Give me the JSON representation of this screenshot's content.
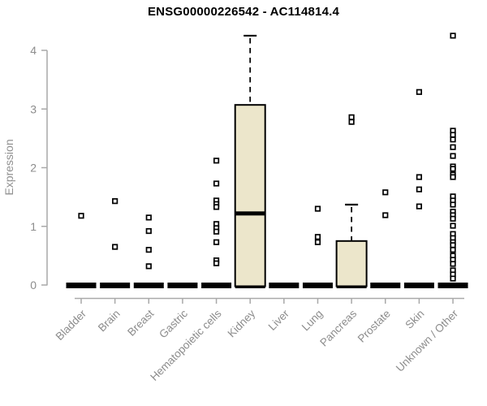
{
  "title": "ENSG00000226542 - AC114814.4",
  "colors": {
    "background": "#FFFFFF",
    "box_fill": "#ECE6CB",
    "box_stroke": "#000000",
    "marker_stroke": "#000000",
    "marker_fill": "#FFFFFF",
    "zero_bar": "#000000",
    "axis_line": "#A9A9A9",
    "axis_text": "#8C8C8C",
    "title_text": "#000000"
  },
  "chart_data": {
    "type": "boxplot",
    "title": "ENSG00000226542 - AC114814.4",
    "xlabel": "",
    "ylabel": "Expression",
    "ylim": [
      0,
      4.3
    ],
    "yticks": [
      0,
      1,
      2,
      3,
      4
    ],
    "grid": false,
    "legend": "none",
    "categories": [
      "Bladder",
      "Brain",
      "Breast",
      "Gastric",
      "Hematopoietic cells",
      "Kidney",
      "Liver",
      "Lung",
      "Pancreas",
      "Prostate",
      "Skin",
      "Unknown / Other"
    ],
    "series": [
      {
        "category": "Bladder",
        "box": {
          "q1": 0,
          "median": 0,
          "q3": 0
        },
        "points": [
          1.18
        ]
      },
      {
        "category": "Brain",
        "box": {
          "q1": 0,
          "median": 0,
          "q3": 0
        },
        "points": [
          1.43,
          0.65
        ]
      },
      {
        "category": "Breast",
        "box": {
          "q1": 0,
          "median": 0,
          "q3": 0
        },
        "points": [
          1.15,
          0.92,
          0.6,
          0.32
        ]
      },
      {
        "category": "Gastric",
        "box": {
          "q1": 0,
          "median": 0,
          "q3": 0
        },
        "points": []
      },
      {
        "category": "Hematopoietic cells",
        "box": {
          "q1": 0,
          "median": 0,
          "q3": 0
        },
        "points": [
          2.12,
          1.73,
          1.44,
          1.38,
          1.33,
          1.04,
          0.97,
          0.91,
          0.73,
          0.42,
          0.37
        ]
      },
      {
        "category": "Kidney",
        "box": {
          "q1": 0,
          "median": 1.22,
          "q3": 3.07,
          "whisker_high": 4.25
        },
        "points": []
      },
      {
        "category": "Liver",
        "box": {
          "q1": 0,
          "median": 0,
          "q3": 0
        },
        "points": []
      },
      {
        "category": "Lung",
        "box": {
          "q1": 0,
          "median": 0,
          "q3": 0
        },
        "points": [
          1.3,
          0.82,
          0.73
        ]
      },
      {
        "category": "Pancreas",
        "box": {
          "q1": 0,
          "median": 0,
          "q3": 0.75,
          "whisker_high": 1.37
        },
        "points": [
          2.86,
          2.78
        ]
      },
      {
        "category": "Prostate",
        "box": {
          "q1": 0,
          "median": 0,
          "q3": 0
        },
        "points": [
          1.58,
          1.19
        ]
      },
      {
        "category": "Skin",
        "box": {
          "q1": 0,
          "median": 0,
          "q3": 0
        },
        "points": [
          3.29,
          1.84,
          1.63,
          1.34
        ]
      },
      {
        "category": "Unknown / Other",
        "box": {
          "q1": 0,
          "median": 0,
          "q3": 0
        },
        "points": [
          4.25,
          2.63,
          2.56,
          2.48,
          2.35,
          2.2,
          2.02,
          1.98,
          1.88,
          1.84,
          1.51,
          1.44,
          1.37,
          1.25,
          1.19,
          1.13,
          1.01,
          0.87,
          0.8,
          0.73,
          0.68,
          0.6,
          0.5,
          0.43,
          0.36,
          0.25,
          0.18,
          0.11
        ]
      }
    ]
  }
}
